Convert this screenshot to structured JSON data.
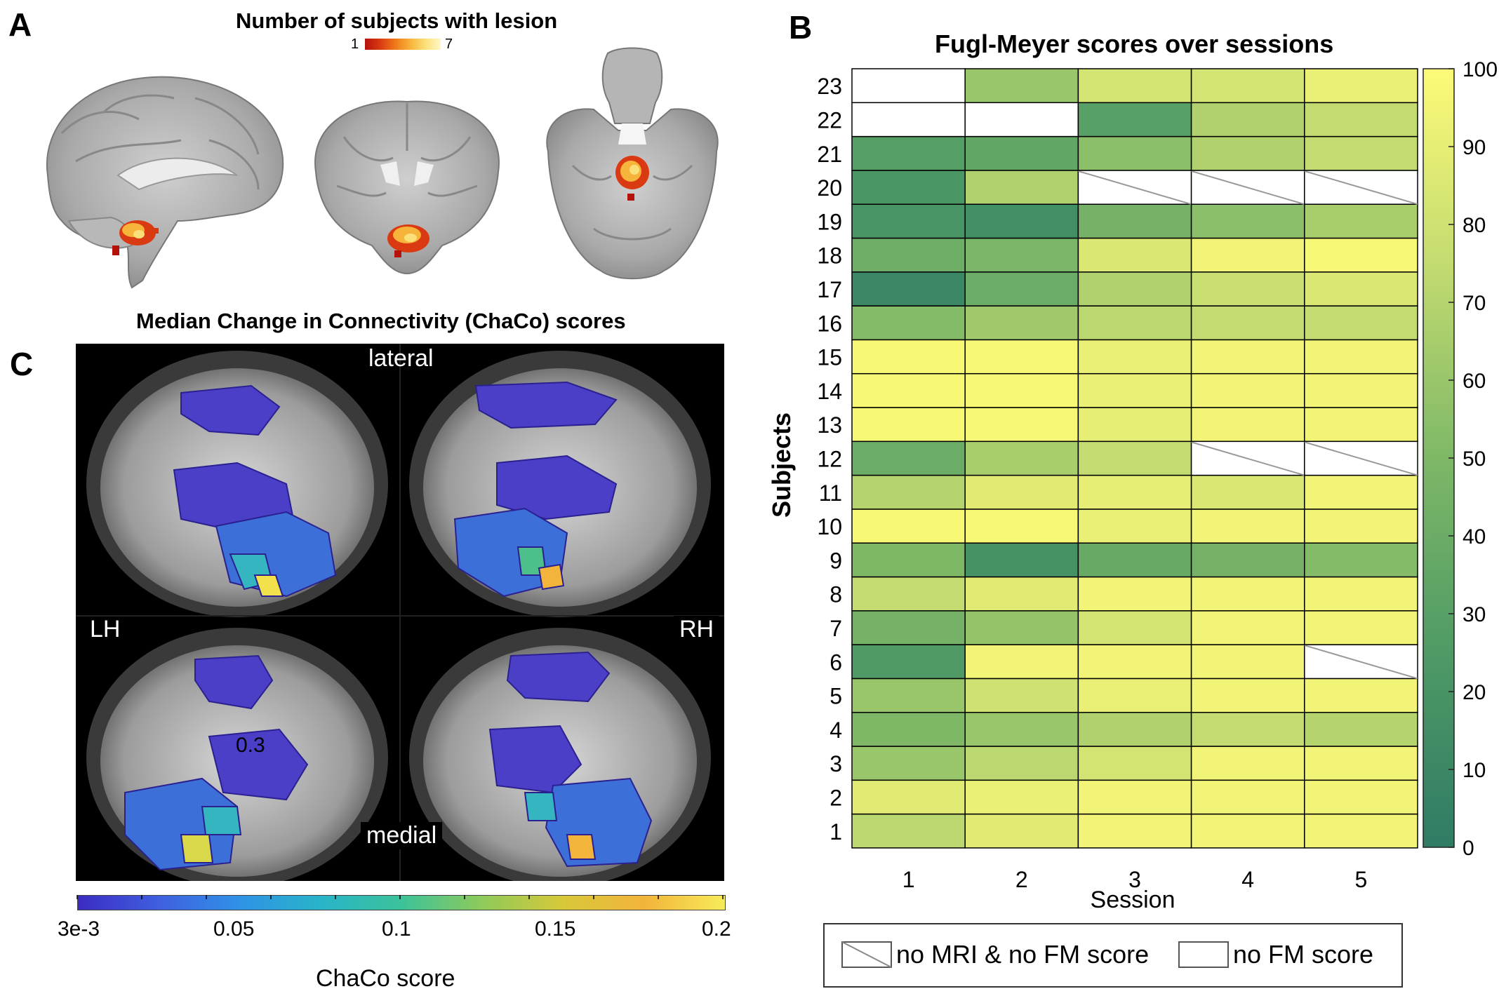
{
  "panelA": {
    "letter": "A",
    "title": "Number of subjects with lesion",
    "lesion_scale": {
      "min_label": "1",
      "max_label": "7",
      "colors": [
        "#b5120c",
        "#d93a12",
        "#ef7a1a",
        "#f7b43a",
        "#fbe07a",
        "#fff7c8"
      ]
    },
    "views": [
      "sagittal",
      "coronal",
      "axial"
    ]
  },
  "panelB": {
    "letter": "B",
    "chart_data": {
      "type": "heatmap",
      "title": "Fugl-Meyer scores over sessions",
      "xlabel": "Session",
      "ylabel": "Subjects",
      "sessions": [
        "1",
        "2",
        "3",
        "4",
        "5"
      ],
      "subjects": [
        "1",
        "2",
        "3",
        "4",
        "5",
        "6",
        "7",
        "8",
        "9",
        "10",
        "11",
        "12",
        "13",
        "14",
        "15",
        "16",
        "17",
        "18",
        "19",
        "20",
        "21",
        "22",
        "23"
      ],
      "colorbar": {
        "min": 0,
        "max": 100,
        "ticks": [
          "0",
          "10",
          "20",
          "30",
          "40",
          "50",
          "60",
          "70",
          "80",
          "90",
          "100"
        ]
      },
      "values": {
        "23": [
          null,
          60,
          82,
          82,
          92
        ],
        "22": [
          null,
          null,
          30,
          68,
          75
        ],
        "21": [
          28,
          35,
          55,
          68,
          75
        ],
        "20": [
          22,
          68,
          "no_mri",
          "no_mri",
          "no_mri"
        ],
        "19": [
          20,
          15,
          45,
          55,
          65
        ],
        "18": [
          42,
          48,
          85,
          95,
          98
        ],
        "17": [
          10,
          40,
          68,
          78,
          85
        ],
        "16": [
          52,
          62,
          72,
          75,
          75
        ],
        "15": [
          98,
          98,
          92,
          95,
          95
        ],
        "14": [
          98,
          98,
          92,
          95,
          95
        ],
        "13": [
          98,
          98,
          90,
          95,
          95
        ],
        "12": [
          40,
          65,
          75,
          "no_mri",
          "no_mri"
        ],
        "11": [
          70,
          88,
          90,
          85,
          95
        ],
        "10": [
          98,
          98,
          92,
          95,
          95
        ],
        "9": [
          50,
          18,
          38,
          45,
          52
        ],
        "8": [
          75,
          88,
          95,
          95,
          95
        ],
        "7": [
          45,
          58,
          82,
          95,
          95
        ],
        "6": [
          25,
          95,
          95,
          95,
          "no_mri"
        ],
        "5": [
          60,
          80,
          92,
          95,
          95
        ],
        "4": [
          50,
          60,
          68,
          75,
          70
        ],
        "3": [
          60,
          72,
          82,
          95,
          95
        ],
        "2": [
          88,
          92,
          95,
          95,
          95
        ],
        "1": [
          72,
          88,
          95,
          95,
          95
        ]
      }
    },
    "legend": {
      "no_mri_label": "no MRI & no FM score",
      "no_fm_label": "no FM score"
    }
  },
  "panelC": {
    "letter": "C",
    "title": "Median Change in Connectivity (ChaCo) scores",
    "labels": {
      "lateral": "lateral",
      "medial": "medial",
      "lh": "LH",
      "rh": "RH",
      "annotation": "0.3"
    },
    "colorbar": {
      "label": "ChaCo score",
      "ticks": [
        "3e-3",
        "0.05",
        "0.1",
        "0.15",
        "0.2"
      ]
    }
  }
}
